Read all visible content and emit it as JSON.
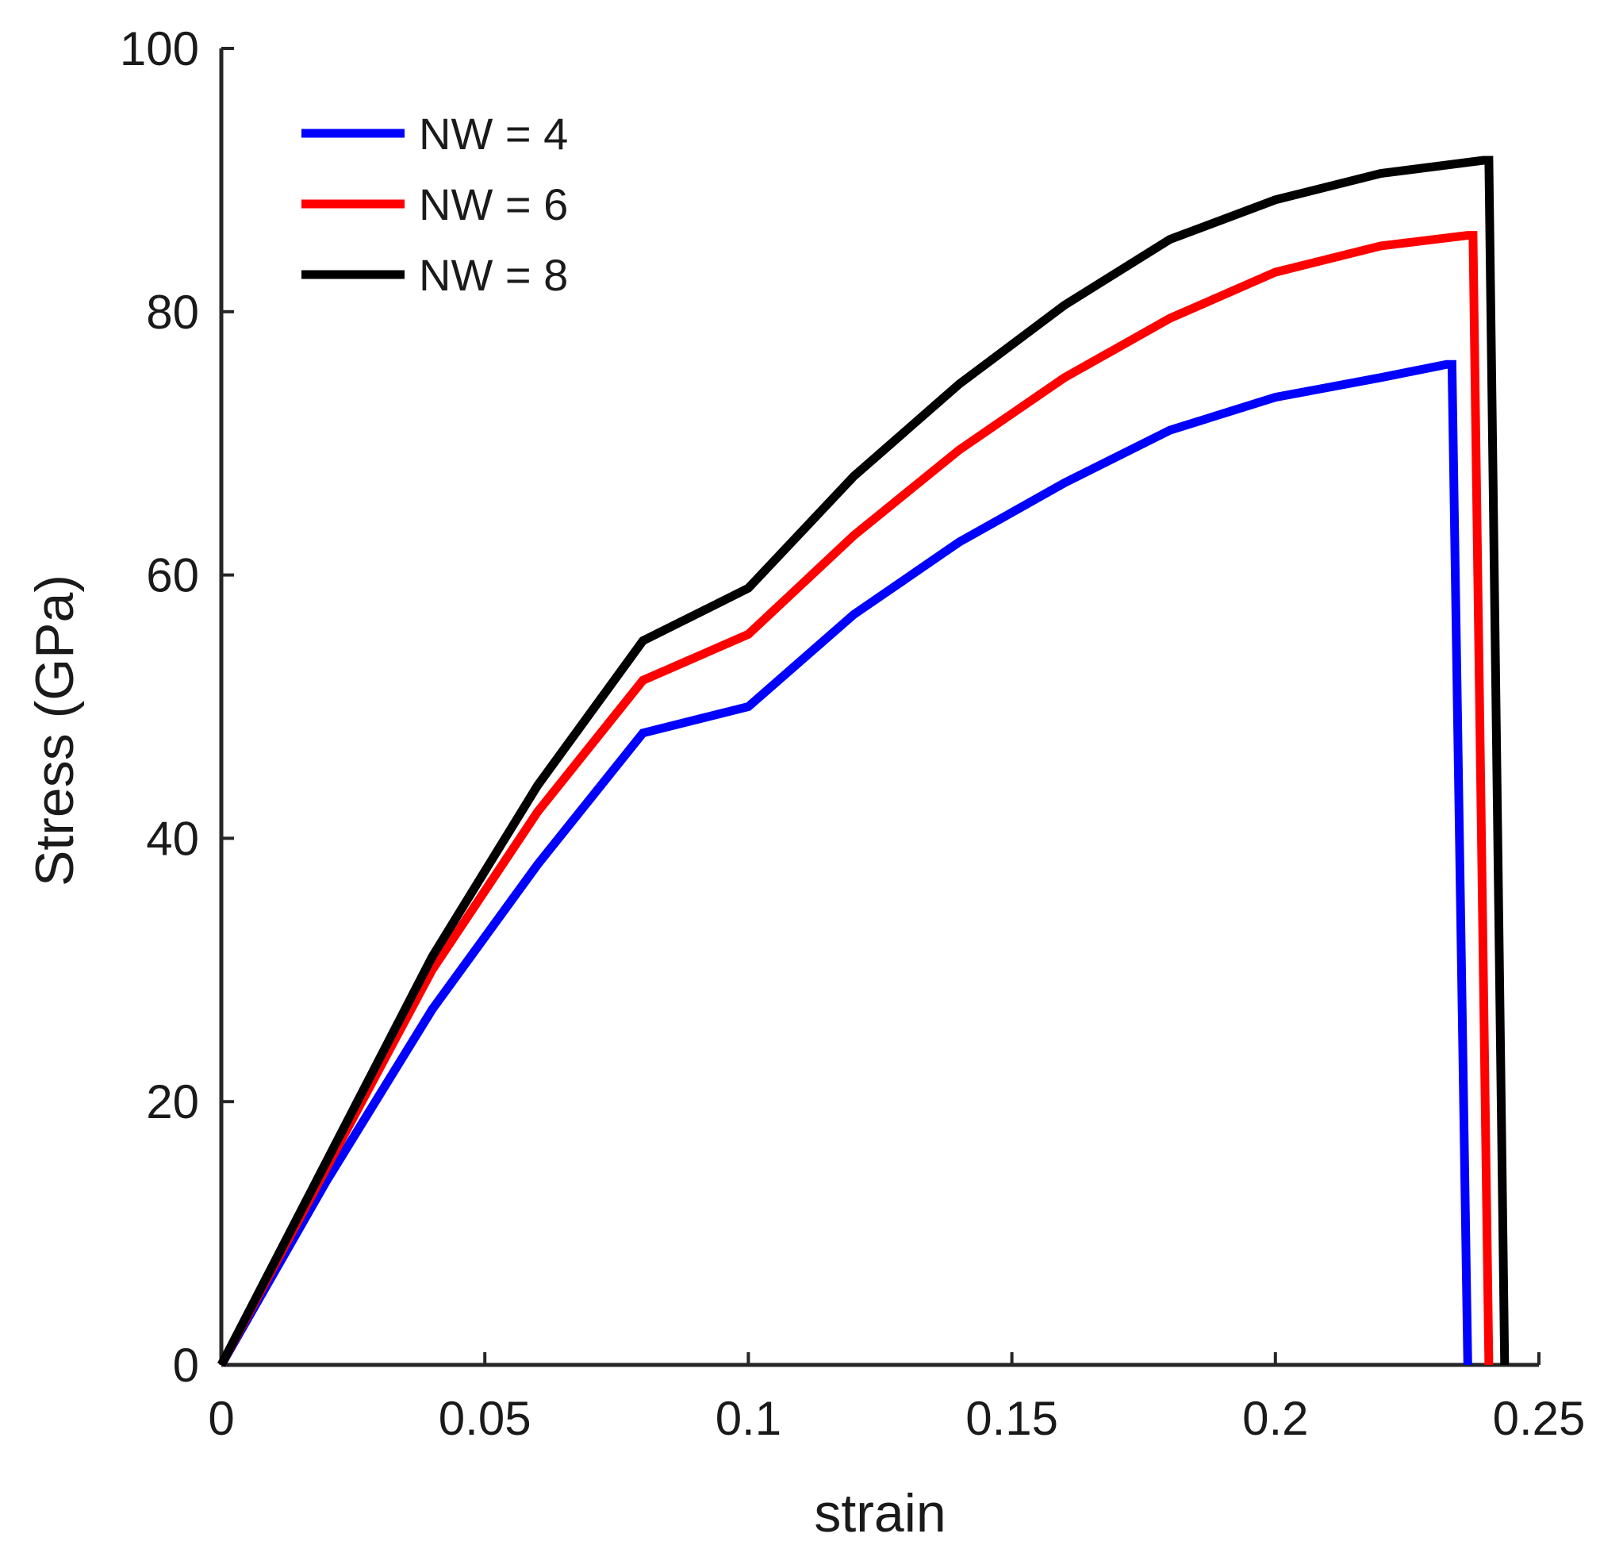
{
  "chart_data": {
    "type": "line",
    "title": "",
    "xlabel": "strain",
    "ylabel": "Stress (GPa)",
    "xlim": [
      0,
      0.25
    ],
    "ylim": [
      0,
      100
    ],
    "xticks": [
      0,
      0.05,
      0.1,
      0.15,
      0.2,
      0.25
    ],
    "xtick_labels": [
      "0",
      "0.05",
      "0.1",
      "0.15",
      "0.2",
      "0.25"
    ],
    "yticks": [
      0,
      20,
      40,
      60,
      80,
      100
    ],
    "ytick_labels": [
      "0",
      "20",
      "40",
      "60",
      "80",
      "100"
    ],
    "grid": false,
    "legend_position": "top-left",
    "series": [
      {
        "name": "NW = 4",
        "color": "#0000ff",
        "x": [
          0,
          0.02,
          0.04,
          0.06,
          0.08,
          0.1,
          0.12,
          0.14,
          0.16,
          0.18,
          0.2,
          0.22,
          0.2325,
          0.2335,
          0.2365
        ],
        "y": [
          0,
          14,
          27,
          38,
          48,
          50,
          57,
          62.5,
          67,
          71,
          73.5,
          75,
          76,
          76,
          0
        ]
      },
      {
        "name": "NW = 6",
        "color": "#ff0000",
        "x": [
          0,
          0.02,
          0.04,
          0.06,
          0.08,
          0.1,
          0.12,
          0.14,
          0.16,
          0.18,
          0.2,
          0.22,
          0.2365,
          0.2375,
          0.2405
        ],
        "y": [
          0,
          15,
          30,
          42,
          52,
          55.5,
          63,
          69.5,
          75,
          79.5,
          83,
          85,
          85.8,
          85.8,
          0
        ]
      },
      {
        "name": "NW = 8",
        "color": "#000000",
        "x": [
          0,
          0.02,
          0.04,
          0.06,
          0.08,
          0.1,
          0.12,
          0.14,
          0.16,
          0.18,
          0.2,
          0.22,
          0.2395,
          0.2405,
          0.2435
        ],
        "y": [
          0,
          15.5,
          31,
          44,
          55,
          59,
          67.5,
          74.5,
          80.5,
          85.5,
          88.5,
          90.5,
          91.5,
          91.5,
          0
        ]
      }
    ]
  }
}
